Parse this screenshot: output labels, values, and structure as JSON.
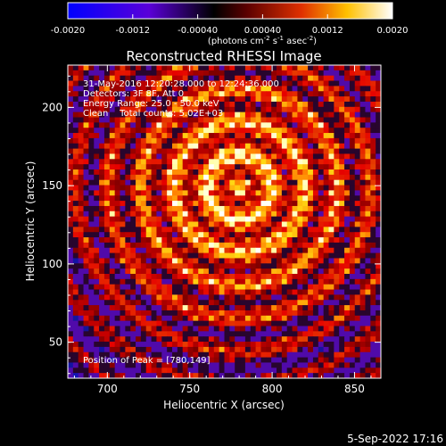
{
  "colorbar": {
    "tick_labels": [
      "-0.0020",
      "-0.0012",
      "-0.00040",
      "0.00040",
      "0.0012",
      "0.0020"
    ],
    "range": [
      -0.002,
      0.002
    ],
    "unit_label": "(photons cm",
    "unit_exp1": "-2",
    "unit_mid": " s",
    "unit_exp2": "-1",
    "unit_mid2": " asec",
    "unit_exp3": "-2",
    "unit_end": ")"
  },
  "chart_data": {
    "type": "heatmap",
    "title": "Reconstructed RHESSI Image",
    "xlabel": "Heliocentric X (arcsec)",
    "ylabel": "Heliocentric Y (arcsec)",
    "xlim": [
      676,
      866
    ],
    "ylim": [
      27,
      227
    ],
    "x_ticks": [
      700,
      750,
      800,
      850
    ],
    "y_ticks": [
      50,
      100,
      150,
      200
    ],
    "colormap": "red-temperature (blue to red to yellow to white)",
    "peak": [
      780,
      149
    ],
    "annotations": {
      "date_line": "31-May-2016 12:20:28.000 to 12:24:36.000",
      "detectors_line": "Detectors: 3F 8F, Att 0",
      "energy_line": "Energy Range: 25.0 - 50.0 keV",
      "clean_line": "Clean    Total counts: 5.02E+03",
      "peak_line": "Position of Peak = [780,149]"
    }
  },
  "footer": {
    "timestamp": "5-Sep-2022 17:16"
  }
}
